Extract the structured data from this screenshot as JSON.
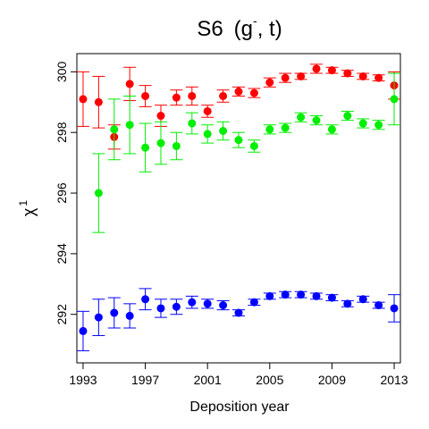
{
  "chart_data": {
    "type": "scatter",
    "title": "S6",
    "title_suffix": "(g",
    "title_superscript": "-",
    "title_end": ", t)",
    "xlabel": "Deposition year",
    "ylabel": "χ",
    "ylabel_superscript": "1",
    "xlim": [
      1992.6,
      2013.4
    ],
    "ylim": [
      290.4,
      300.6
    ],
    "xticks": [
      1993,
      1997,
      2001,
      2005,
      2009,
      2013
    ],
    "yticks": [
      292,
      294,
      296,
      298,
      300
    ],
    "grid": false,
    "error_bars": true,
    "x": [
      1993,
      1994,
      1995,
      1996,
      1997,
      1998,
      1999,
      2000,
      2001,
      2002,
      2003,
      2004,
      2005,
      2006,
      2007,
      2008,
      2009,
      2010,
      2011,
      2012,
      2013
    ],
    "series": [
      {
        "color": "#ff0000",
        "values": [
          299.1,
          299.0,
          297.85,
          299.6,
          299.2,
          298.55,
          299.15,
          299.2,
          298.7,
          299.2,
          299.35,
          299.3,
          299.65,
          299.8,
          299.85,
          300.1,
          300.05,
          299.95,
          299.85,
          299.8,
          299.55
        ],
        "errors": [
          0.9,
          0.85,
          0.4,
          0.55,
          0.35,
          0.35,
          0.25,
          0.3,
          0.2,
          0.2,
          0.15,
          0.15,
          0.15,
          0.15,
          0.1,
          0.15,
          0.1,
          0.1,
          0.1,
          0.1,
          0.45
        ]
      },
      {
        "color": "#00ee00",
        "values": [
          null,
          296.0,
          298.1,
          298.25,
          297.5,
          297.65,
          297.55,
          298.3,
          297.95,
          298.05,
          297.75,
          297.55,
          298.1,
          298.15,
          298.5,
          298.4,
          298.1,
          298.55,
          298.3,
          298.25,
          299.1
        ],
        "errors": [
          null,
          1.3,
          1.0,
          0.95,
          0.8,
          0.7,
          0.45,
          0.35,
          0.3,
          0.3,
          0.25,
          0.2,
          0.15,
          0.15,
          0.15,
          0.15,
          0.15,
          0.15,
          0.15,
          0.15,
          0.85
        ]
      },
      {
        "color": "#0000ff",
        "values": [
          291.45,
          291.9,
          292.05,
          291.95,
          292.5,
          292.2,
          292.25,
          292.4,
          292.35,
          292.3,
          292.05,
          292.4,
          292.6,
          292.65,
          292.65,
          292.6,
          292.55,
          292.35,
          292.5,
          292.3,
          292.2
        ],
        "errors": [
          0.65,
          0.6,
          0.5,
          0.4,
          0.35,
          0.3,
          0.25,
          0.2,
          0.15,
          0.15,
          0.1,
          0.1,
          0.1,
          0.1,
          0.1,
          0.1,
          0.1,
          0.1,
          0.1,
          0.1,
          0.45
        ]
      }
    ]
  }
}
